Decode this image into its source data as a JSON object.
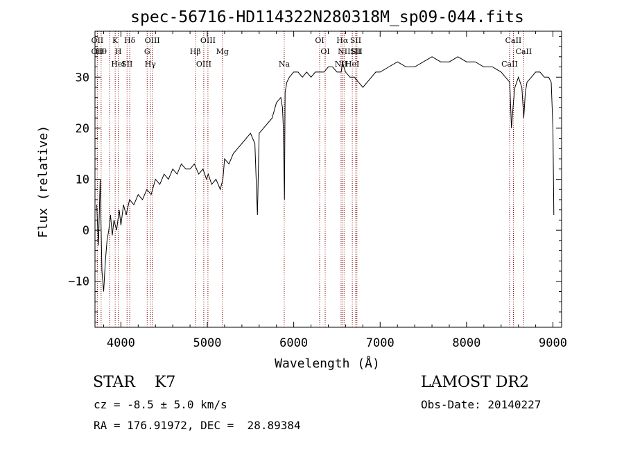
{
  "chart_data": {
    "type": "line",
    "title": "spec-56716-HD114322N280318M_sp09-044.fits",
    "xlabel": "Wavelength (Å)",
    "ylabel": "Flux (relative)",
    "xlim": [
      3700,
      9100
    ],
    "ylim": [
      -19,
      39
    ],
    "xticks": [
      4000,
      5000,
      6000,
      7000,
      8000,
      9000
    ],
    "yticks": [
      -10,
      0,
      10,
      20,
      30
    ],
    "grid": false,
    "line_color": "#000000",
    "marker_color": "#8b0000",
    "series": [
      {
        "x": [
          3720,
          3740,
          3760,
          3780,
          3800,
          3820,
          3840,
          3860,
          3880,
          3900,
          3920,
          3950,
          3980,
          4000,
          4030,
          4060,
          4100,
          4150,
          4200,
          4250,
          4300,
          4350,
          4400,
          4450,
          4500,
          4550,
          4600,
          4650,
          4700,
          4750,
          4800,
          4850,
          4900,
          4950,
          4990,
          5010,
          5050,
          5100,
          5150,
          5180,
          5200,
          5250,
          5300,
          5350,
          5400,
          5450,
          5500,
          5550,
          5580,
          5600,
          5650,
          5700,
          5750,
          5800,
          5850,
          5870,
          5880,
          5893,
          5900,
          5920,
          5950,
          6000,
          6050,
          6100,
          6150,
          6200,
          6250,
          6300,
          6350,
          6400,
          6450,
          6500,
          6550,
          6563,
          6580,
          6600,
          6650,
          6700,
          6750,
          6800,
          6850,
          6900,
          6950,
          7000,
          7100,
          7200,
          7300,
          7400,
          7500,
          7600,
          7700,
          7800,
          7900,
          8000,
          8100,
          8200,
          8300,
          8400,
          8450,
          8500,
          8520,
          8542,
          8560,
          8600,
          8640,
          8662,
          8680,
          8700,
          8750,
          8800,
          8850,
          8900,
          8950,
          8980,
          9000,
          9010
        ],
        "y": [
          5,
          -3,
          10,
          -8,
          -12,
          -6,
          -2,
          0,
          3,
          -1,
          2,
          0,
          4,
          1,
          5,
          3,
          6,
          5,
          7,
          6,
          8,
          7,
          10,
          9,
          11,
          10,
          12,
          11,
          13,
          12,
          12,
          13,
          11,
          12,
          10,
          11,
          9,
          10,
          8,
          10,
          14,
          13,
          15,
          16,
          17,
          18,
          19,
          17,
          3,
          19,
          20,
          21,
          22,
          25,
          26,
          24,
          20,
          6,
          27,
          29,
          30,
          31,
          31,
          30,
          31,
          30,
          31,
          31,
          31,
          32,
          32,
          31,
          31,
          33,
          32,
          31,
          30,
          30,
          29,
          28,
          29,
          30,
          31,
          31,
          32,
          33,
          32,
          32,
          33,
          34,
          33,
          33,
          34,
          33,
          33,
          32,
          32,
          31,
          30,
          29,
          20,
          25,
          28,
          30,
          28,
          22,
          27,
          29,
          30,
          31,
          31,
          30,
          30,
          29,
          20,
          3
        ]
      }
    ],
    "line_markers": [
      {
        "x": 3727,
        "labels": [
          "OII",
          "OII"
        ]
      },
      {
        "x": 3771,
        "labels": [
          "Hθ"
        ]
      },
      {
        "x": 3869,
        "labels": []
      },
      {
        "x": 3934,
        "labels": [
          "K"
        ]
      },
      {
        "x": 3970,
        "labels": [
          "H",
          "HeI"
        ]
      },
      {
        "x": 4071,
        "labels": [
          "SII"
        ]
      },
      {
        "x": 4102,
        "labels": [
          "Hδ"
        ]
      },
      {
        "x": 4304,
        "labels": [
          "G"
        ]
      },
      {
        "x": 4340,
        "labels": [
          "Hγ"
        ]
      },
      {
        "x": 4363,
        "labels": [
          "OIII"
        ]
      },
      {
        "x": 4861,
        "labels": [
          "Hβ"
        ]
      },
      {
        "x": 4959,
        "labels": [
          "OIII"
        ]
      },
      {
        "x": 5007,
        "labels": [
          "OIII"
        ]
      },
      {
        "x": 5175,
        "labels": [
          "Mg"
        ]
      },
      {
        "x": 5890,
        "labels": [
          "Na"
        ]
      },
      {
        "x": 6300,
        "labels": [
          "OI"
        ]
      },
      {
        "x": 6364,
        "labels": [
          "OI"
        ]
      },
      {
        "x": 6548,
        "labels": [
          "NII"
        ]
      },
      {
        "x": 6563,
        "labels": [
          "Hα"
        ]
      },
      {
        "x": 6583,
        "labels": [
          "NII"
        ]
      },
      {
        "x": 6678,
        "labels": [
          "HeI"
        ]
      },
      {
        "x": 6717,
        "labels": [
          "SII",
          "SII"
        ]
      },
      {
        "x": 6731,
        "labels": [
          "SII"
        ]
      },
      {
        "x": 8498,
        "labels": [
          "CaII"
        ]
      },
      {
        "x": 8542,
        "labels": [
          "CaII"
        ]
      },
      {
        "x": 8662,
        "labels": [
          "CaII"
        ]
      }
    ]
  },
  "info": {
    "class_label": "STAR    K7",
    "cz_label": "cz = -8.5 ± 5.0 km/s",
    "radec_label": "RA = 176.91972, DEC =  28.89384",
    "survey_label": "LAMOST DR2",
    "obs_date_label": "Obs-Date: 20140227"
  }
}
